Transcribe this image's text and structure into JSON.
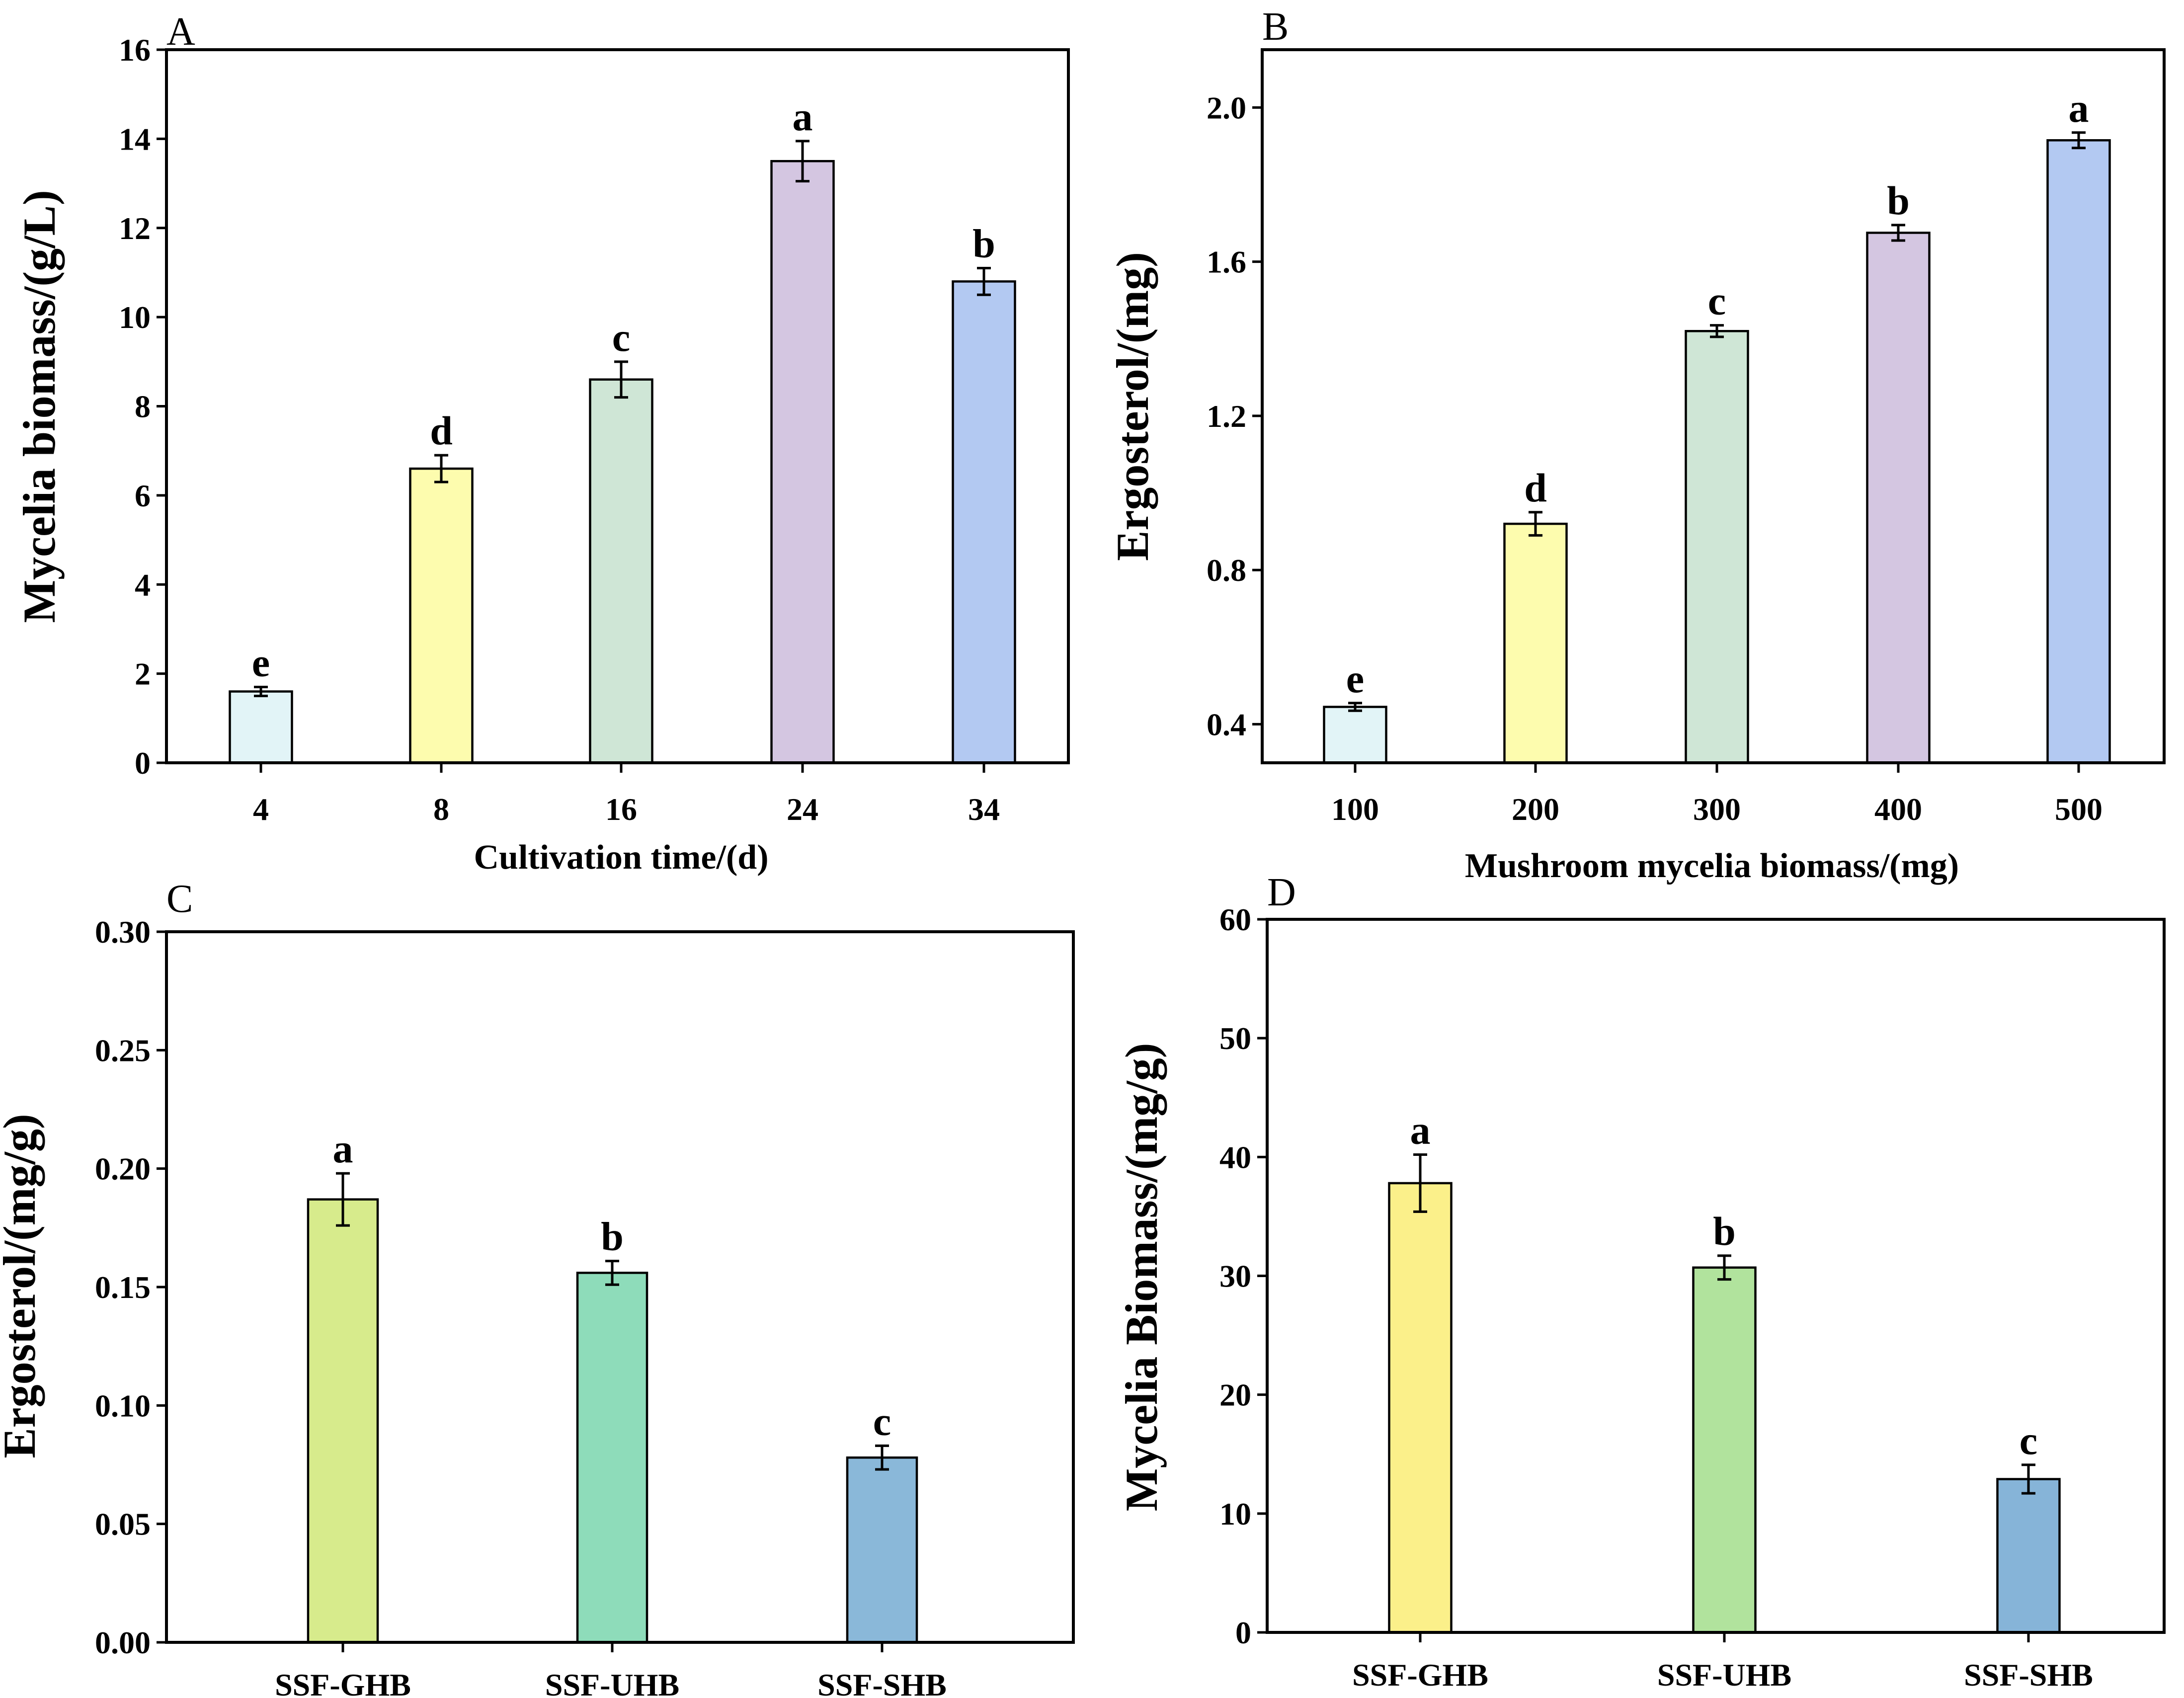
{
  "chart_data": [
    {
      "panel": "A",
      "type": "bar",
      "title": "",
      "xlabel": "Cultivation time/(d)",
      "ylabel": "Mycelia biomass/(g/L)",
      "categories": [
        "4",
        "8",
        "16",
        "24",
        "34"
      ],
      "values": [
        1.6,
        6.6,
        8.6,
        13.5,
        10.8
      ],
      "errors": [
        0.1,
        0.3,
        0.4,
        0.45,
        0.3
      ],
      "significance": [
        "e",
        "d",
        "c",
        "a",
        "b"
      ],
      "colors": [
        "#e2f4f7",
        "#fdfcae",
        "#cfe6d6",
        "#d4c6e1",
        "#b3c9f2"
      ],
      "ylim": [
        0,
        16
      ],
      "yticks": [
        "0",
        "2",
        "4",
        "6",
        "8",
        "10",
        "12",
        "14",
        "16"
      ],
      "grid": false
    },
    {
      "panel": "B",
      "type": "bar",
      "title": "",
      "xlabel": "Mushroom mycelia biomass/(mg)",
      "ylabel": "Ergosterol/(mg)",
      "categories": [
        "100",
        "200",
        "300",
        "400",
        "500"
      ],
      "values": [
        0.445,
        0.92,
        1.42,
        1.675,
        1.915
      ],
      "errors": [
        0.01,
        0.03,
        0.015,
        0.02,
        0.02
      ],
      "significance": [
        "e",
        "d",
        "c",
        "b",
        "a"
      ],
      "colors": [
        "#e2f4f7",
        "#fdfcae",
        "#cfe6d6",
        "#d4c6e1",
        "#b3c9f2"
      ],
      "ylim": [
        0.3,
        2.15
      ],
      "yticks": [
        "0.4",
        "0.8",
        "1.2",
        "1.6",
        "2.0"
      ],
      "grid": false
    },
    {
      "panel": "C",
      "type": "bar",
      "title": "",
      "xlabel": "",
      "ylabel": "Ergosterol/(mg/g)",
      "categories": [
        "SSF-GHB",
        "SSF-UHB",
        "SSF-SHB"
      ],
      "values": [
        0.187,
        0.156,
        0.078
      ],
      "errors": [
        0.011,
        0.005,
        0.005
      ],
      "significance": [
        "a",
        "b",
        "c"
      ],
      "colors": [
        "#d7eb8c",
        "#8edcba",
        "#8ab8d9"
      ],
      "ylim": [
        0,
        0.3
      ],
      "yticks": [
        "0.00",
        "0.05",
        "0.10",
        "0.15",
        "0.20",
        "0.25",
        "0.30"
      ],
      "grid": false
    },
    {
      "panel": "D",
      "type": "bar",
      "title": "",
      "xlabel": "",
      "ylabel": "Mycelia Biomass/(mg/g)",
      "categories": [
        "SSF-GHB",
        "SSF-UHB",
        "SSF-SHB"
      ],
      "values": [
        37.8,
        30.7,
        12.9
      ],
      "errors": [
        2.4,
        1.0,
        1.2
      ],
      "significance": [
        "a",
        "b",
        "c"
      ],
      "colors": [
        "#fbf08a",
        "#b1e39d",
        "#86b4d8"
      ],
      "ylim": [
        0,
        60
      ],
      "yticks": [
        "0",
        "10",
        "20",
        "30",
        "40",
        "50",
        "60"
      ],
      "grid": false
    }
  ]
}
